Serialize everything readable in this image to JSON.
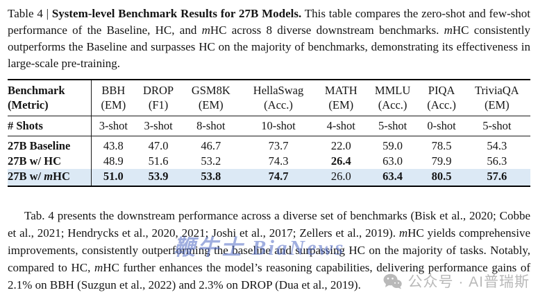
{
  "caption": {
    "segments": [
      {
        "t": "Table 4 | "
      },
      {
        "t": "System-level Benchmark Results for 27B Models.",
        "b": true
      },
      {
        "t": " This table compares the zero-shot and few-shot performance of the Baseline, HC, and "
      },
      {
        "t": "m",
        "i": true
      },
      {
        "t": "HC across 8 diverse downstream benchmarks. "
      },
      {
        "t": "m",
        "i": true
      },
      {
        "t": "HC consistently outperforms the Baseline and surpasses HC on the majority of benchmarks, demonstrating its effectiveness in large-scale pre-training."
      }
    ]
  },
  "table": {
    "corner": {
      "line1": "Benchmark",
      "line2": "(Metric)"
    },
    "shots_label": "# Shots",
    "columns": [
      {
        "name": "BBH",
        "metric": "(EM)",
        "shots": "3-shot"
      },
      {
        "name": "DROP",
        "metric": "(F1)",
        "shots": "3-shot"
      },
      {
        "name": "GSM8K",
        "metric": "(EM)",
        "shots": "8-shot"
      },
      {
        "name": "HellaSwag",
        "metric": "(Acc.)",
        "shots": "10-shot"
      },
      {
        "name": "MATH",
        "metric": "(EM)",
        "shots": "4-shot"
      },
      {
        "name": "MMLU",
        "metric": "(Acc.)",
        "shots": "5-shot"
      },
      {
        "name": "PIQA",
        "metric": "(Acc.)",
        "shots": "0-shot"
      },
      {
        "name": "TriviaQA",
        "metric": "(EM)",
        "shots": "5-shot"
      }
    ],
    "rows": [
      {
        "label_segments": [
          {
            "t": "27B Baseline"
          }
        ],
        "values": [
          "43.8",
          "47.0",
          "46.7",
          "73.7",
          "22.0",
          "59.0",
          "78.5",
          "54.3"
        ],
        "bold_cols": [],
        "highlight": false
      },
      {
        "label_segments": [
          {
            "t": "27B w/ HC"
          }
        ],
        "values": [
          "48.9",
          "51.6",
          "53.2",
          "74.3",
          "26.4",
          "63.0",
          "79.9",
          "56.3"
        ],
        "bold_cols": [
          4
        ],
        "highlight": false
      },
      {
        "label_segments": [
          {
            "t": "27B w/ "
          },
          {
            "t": "m",
            "i": true
          },
          {
            "t": "HC"
          }
        ],
        "values": [
          "51.0",
          "53.9",
          "53.8",
          "74.7",
          "26.0",
          "63.4",
          "80.5",
          "57.6"
        ],
        "bold_cols": [
          0,
          1,
          2,
          3,
          5,
          6,
          7
        ],
        "highlight": true
      }
    ],
    "highlight_color": "#dce9f5"
  },
  "paragraph": {
    "segments": [
      {
        "t": "Tab. 4 presents the downstream performance across a diverse set of benchmarks (Bisk et al., 2020; Cobbe et al., 2021; Hendrycks et al., 2020, 2021; Joshi et al., 2017; Zellers et al., 2019). "
      },
      {
        "t": "m",
        "i": true
      },
      {
        "t": "HC yields comprehensive improvements, consistently outperforming the baseline and surpassing HC on the majority of tasks. Notably, compared to HC, "
      },
      {
        "t": "m",
        "i": true
      },
      {
        "t": "HC further enhances the model’s reasoning capabilities, delivering performance gains of 2.1% on BBH (Suzgun et al., 2022) and 2.3% on DROP (Dua et al., 2019)."
      }
    ]
  },
  "watermarks": {
    "center": {
      "text": "鞭牛士 BiaNews",
      "color": "rgba(82,108,196,0.55)"
    },
    "bottom_right": {
      "icon": "wechat-icon",
      "text": "公众号 · AI普瑞斯",
      "color": "#b9b9b9"
    }
  }
}
